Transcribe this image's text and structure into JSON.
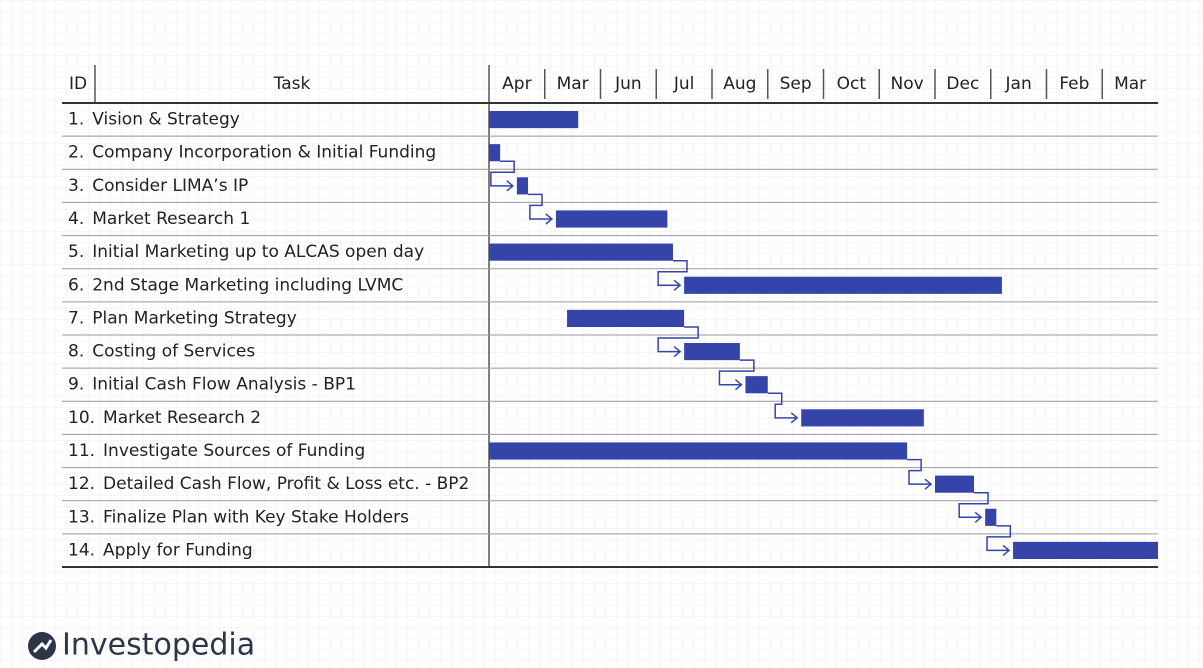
{
  "chart_data": {
    "type": "gantt",
    "id_header": "ID",
    "task_header": "Task",
    "months": [
      "Apr",
      "Mar",
      "Jun",
      "Jul",
      "Aug",
      "Sep",
      "Oct",
      "Nov",
      "Dec",
      "Jan",
      "Feb",
      "Mar"
    ],
    "ids": [
      "1.",
      "2.",
      "3.",
      "4.",
      "5.",
      "6.",
      "7.",
      "8.",
      "9.",
      "10.",
      "11.",
      "12.",
      "13.",
      "14."
    ],
    "categories": [
      "Vision & Strategy",
      "Company Incorporation & Initial Funding",
      "Consider LIMA’s IP",
      "Market Research 1",
      "Initial Marketing up to ALCAS open day",
      "2nd Stage Marketing including LVMC",
      "Plan Marketing Strategy",
      "Costing of Services",
      "Initial Cash Flow Analysis - BP1",
      "Market Research 2",
      "Investigate Sources of Funding",
      "Detailed Cash Flow, Profit & Loss etc. - BP2",
      "Finalize Plan with Key Stake Holders",
      "Apply for Funding"
    ],
    "start": [
      0,
      0,
      0.5,
      1.2,
      0,
      3.5,
      1.4,
      3.5,
      4.6,
      5.6,
      0,
      8.0,
      8.9,
      9.4
    ],
    "end": [
      1.6,
      0.2,
      0.7,
      3.2,
      3.3,
      9.2,
      3.5,
      4.5,
      5.0,
      7.8,
      7.5,
      8.7,
      9.1,
      12
    ],
    "xlim": [
      0,
      12
    ],
    "color": "#3544a8"
  },
  "brand": "Investopedia"
}
